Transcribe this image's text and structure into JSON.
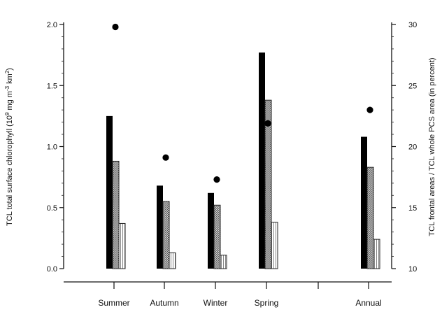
{
  "chart_data": {
    "type": "bar",
    "categories": [
      "Summer",
      "Autumn",
      "Winter",
      "Spring",
      "",
      "Annual"
    ],
    "ylabel": "TCL total surface chlorophyll (10^9 mg m^-3 km^2)",
    "ylabel_parts": {
      "pre": "TCL total surface chlorophyll (10",
      "sup1": "9",
      "mid": " mg m",
      "sup2": "-3",
      "mid2": " km",
      "sup3": "2",
      "post": ")"
    },
    "y2label": "TCL frontal areas / TCL whole PCS area (in percent)",
    "ylim": [
      0,
      2.0
    ],
    "y2lim": [
      10,
      30
    ],
    "yticks": [
      "0.0",
      "0.5",
      "1.0",
      "1.5",
      "2.0"
    ],
    "y2ticks": [
      "10",
      "15",
      "20",
      "25",
      "30"
    ],
    "series": [
      {
        "values": [
          1.25,
          0.68,
          0.62,
          1.77,
          null,
          1.08
        ],
        "style": "solid"
      },
      {
        "values": [
          0.88,
          0.55,
          0.52,
          1.38,
          null,
          0.83
        ],
        "style": "checker"
      },
      {
        "values": [
          0.37,
          0.13,
          0.11,
          0.38,
          null,
          0.24
        ],
        "style": "hatched"
      },
      {
        "values": [
          29.8,
          19.1,
          17.3,
          21.9,
          null,
          23.0
        ],
        "style": "dot",
        "axis": "right"
      }
    ],
    "grid": false,
    "colors": {
      "solid": "#000000",
      "checker": "#9a9a9a",
      "outline": "#222222"
    }
  }
}
